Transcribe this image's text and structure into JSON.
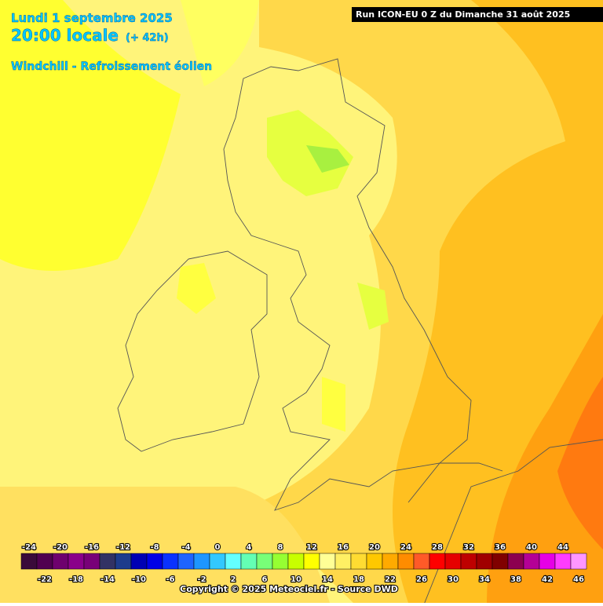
{
  "header": {
    "date": "Lundi 1 septembre 2025",
    "time": "20:00 locale",
    "lead": "(+ 42h)",
    "parameter": "Windchill - Refroissement éolien",
    "run": "Run ICON-EU 0 Z du Dimanche 31 août 2025"
  },
  "legend": {
    "items": [
      {
        "value": -24,
        "color": "#3a0a3a"
      },
      {
        "value": -22,
        "color": "#500050"
      },
      {
        "value": -20,
        "color": "#6e006e"
      },
      {
        "value": -18,
        "color": "#8a008a"
      },
      {
        "value": -16,
        "color": "#780078"
      },
      {
        "value": -14,
        "color": "#323264"
      },
      {
        "value": -12,
        "color": "#1e3c8c"
      },
      {
        "value": -10,
        "color": "#0000b4"
      },
      {
        "value": -8,
        "color": "#0000e6"
      },
      {
        "value": -6,
        "color": "#0a32ff"
      },
      {
        "value": -4,
        "color": "#1e64ff"
      },
      {
        "value": -2,
        "color": "#1e96ff"
      },
      {
        "value": 0,
        "color": "#32c8ff"
      },
      {
        "value": 2,
        "color": "#64ffff"
      },
      {
        "value": 4,
        "color": "#64ffb4"
      },
      {
        "value": 6,
        "color": "#78ff78"
      },
      {
        "value": 8,
        "color": "#96ff32"
      },
      {
        "value": 10,
        "color": "#c8ff00"
      },
      {
        "value": 12,
        "color": "#ffff00"
      },
      {
        "value": 14,
        "color": "#ffff96"
      },
      {
        "value": 16,
        "color": "#fff064"
      },
      {
        "value": 18,
        "color": "#ffdc32"
      },
      {
        "value": 20,
        "color": "#ffc800"
      },
      {
        "value": 22,
        "color": "#ffaa00"
      },
      {
        "value": 24,
        "color": "#ff8c00"
      },
      {
        "value": 26,
        "color": "#ff5a28"
      },
      {
        "value": 28,
        "color": "#ff0000"
      },
      {
        "value": 30,
        "color": "#e60000"
      },
      {
        "value": 32,
        "color": "#be0000"
      },
      {
        "value": 34,
        "color": "#a00000"
      },
      {
        "value": 36,
        "color": "#800000"
      },
      {
        "value": 38,
        "color": "#8c0050"
      },
      {
        "value": 40,
        "color": "#b40096"
      },
      {
        "value": 42,
        "color": "#e600e6"
      },
      {
        "value": 44,
        "color": "#ff3cff"
      },
      {
        "value": 46,
        "color": "#ff96ff"
      }
    ]
  },
  "footer": {
    "copyright": "Copyright © 2025 Meteociel.fr - Source DWD"
  }
}
